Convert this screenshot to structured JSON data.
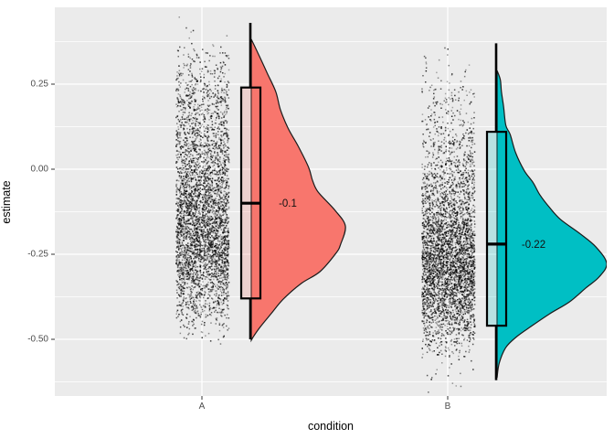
{
  "figure": {
    "kind": "raincloud plot (ggplot2 style)",
    "background": "#FFFFFF"
  },
  "style": {
    "panel_bg": "#EBEBEB",
    "grid_color": "#FFFFFF",
    "tick_mark_color": "#333333",
    "tick_label_color": "#4D4D4D",
    "axis_title_color": "#000000",
    "point_color": "#000000",
    "outline_color": "#1A1A1A",
    "box_fill_alpha": 0.22
  },
  "axes": {
    "x": {
      "title": "condition",
      "ticks": [
        {
          "label": "A"
        },
        {
          "label": "B"
        }
      ]
    },
    "y": {
      "title": "estimate",
      "ticks": [
        {
          "label": "0.25",
          "value": 0.25
        },
        {
          "label": "0.00",
          "value": 0.0
        },
        {
          "label": "-0.25",
          "value": -0.25
        },
        {
          "label": "-0.50",
          "value": -0.5
        }
      ],
      "minor": [
        0.375,
        0.125,
        -0.125,
        -0.375,
        -0.625
      ]
    }
  },
  "chart_data": {
    "type": "raincloud (jittered points + boxplot + half-eye density)",
    "title": "",
    "xlabel": "condition",
    "ylabel": "estimate",
    "categories": [
      "A",
      "B"
    ],
    "ylim_shown": [
      -0.667,
      0.476
    ],
    "y_major_ticks": [
      0.25,
      0.0,
      -0.25,
      -0.5
    ],
    "grid": true,
    "legend": "none",
    "series": [
      {
        "name": "A",
        "color": "#F8766D",
        "median": -0.1,
        "median_label": "-0.1",
        "q1": -0.38,
        "q3": 0.24,
        "whisker_low": -0.5,
        "whisker_high": 0.43,
        "points_value_range": [
          0.45,
          -0.5
        ],
        "density_profile": [
          [
            0.382,
            0.0
          ],
          [
            0.336,
            0.08
          ],
          [
            0.282,
            0.17
          ],
          [
            0.228,
            0.26
          ],
          [
            0.175,
            0.31
          ],
          [
            0.121,
            0.39
          ],
          [
            0.067,
            0.5
          ],
          [
            0.005,
            0.61
          ],
          [
            -0.032,
            0.65
          ],
          [
            -0.067,
            0.71
          ],
          [
            -0.121,
            0.89
          ],
          [
            -0.167,
            1.0
          ],
          [
            -0.22,
            0.95
          ],
          [
            -0.247,
            0.9
          ],
          [
            -0.301,
            0.73
          ],
          [
            -0.336,
            0.53
          ],
          [
            -0.382,
            0.34
          ],
          [
            -0.425,
            0.21
          ],
          [
            -0.462,
            0.1
          ],
          [
            -0.489,
            0.03
          ],
          [
            -0.503,
            0.0
          ]
        ]
      },
      {
        "name": "B",
        "color": "#00BFC4",
        "median": -0.22,
        "median_label": "-0.22",
        "q1": -0.46,
        "q3": 0.11,
        "whisker_low": -0.62,
        "whisker_high": 0.37,
        "points_value_range": [
          0.37,
          -0.65
        ],
        "density_profile": [
          [
            0.29,
            0.0
          ],
          [
            0.263,
            0.03
          ],
          [
            0.228,
            0.04
          ],
          [
            0.183,
            0.06
          ],
          [
            0.129,
            0.08
          ],
          [
            0.102,
            0.12
          ],
          [
            0.048,
            0.17
          ],
          [
            -0.005,
            0.25
          ],
          [
            -0.04,
            0.33
          ],
          [
            -0.075,
            0.39
          ],
          [
            -0.113,
            0.48
          ],
          [
            -0.148,
            0.58
          ],
          [
            -0.188,
            0.75
          ],
          [
            -0.228,
            0.9
          ],
          [
            -0.277,
            1.0
          ],
          [
            -0.317,
            0.93
          ],
          [
            -0.349,
            0.81
          ],
          [
            -0.39,
            0.66
          ],
          [
            -0.425,
            0.48
          ],
          [
            -0.462,
            0.31
          ],
          [
            -0.492,
            0.18
          ],
          [
            -0.524,
            0.08
          ],
          [
            -0.57,
            0.02
          ],
          [
            -0.613,
            0.0
          ]
        ]
      }
    ]
  }
}
